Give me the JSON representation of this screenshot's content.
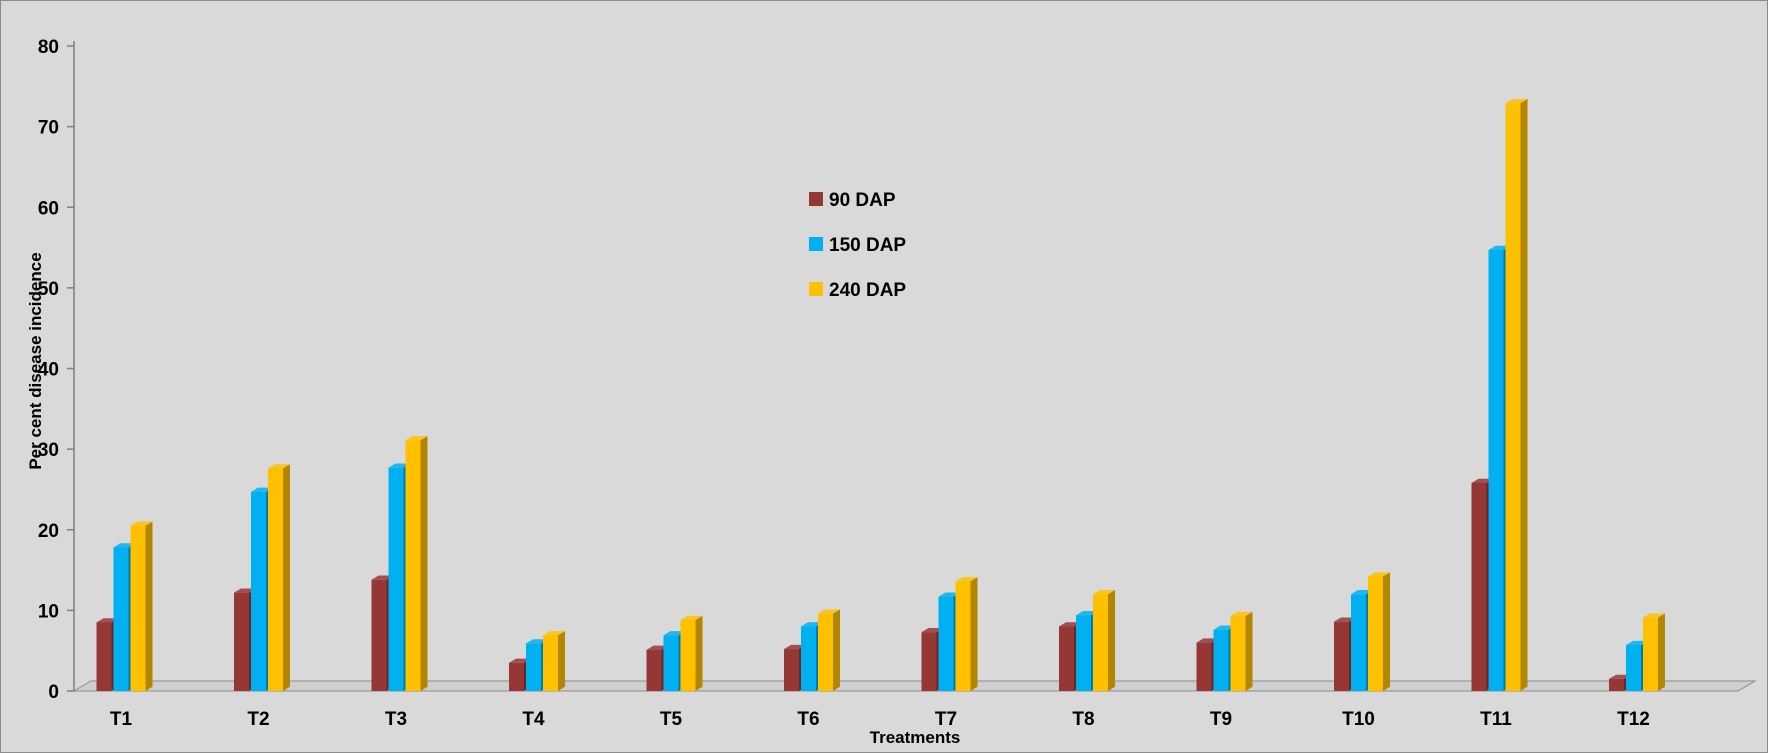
{
  "chart_data": {
    "type": "bar",
    "title": "",
    "xlabel": "Treatments",
    "ylabel": "Per cent disease incidence",
    "categories": [
      "T1",
      "T2",
      "T3",
      "T4",
      "T5",
      "T6",
      "T7",
      "T8",
      "T9",
      "T10",
      "T11",
      "T12"
    ],
    "yticks": [
      "0",
      "10",
      "20",
      "30",
      "40",
      "50",
      "60",
      "70",
      "80"
    ],
    "ylim": [
      0,
      80
    ],
    "grid": false,
    "legend_position": "center",
    "series": [
      {
        "name": "90 DAP",
        "color": "#953735",
        "values": [
          8.5,
          12.2,
          13.8,
          3.5,
          5.1,
          5.2,
          7.3,
          8.0,
          6.0,
          8.6,
          25.8,
          1.5
        ]
      },
      {
        "name": "150 DAP",
        "color": "#00b0f0",
        "values": [
          17.8,
          24.7,
          27.7,
          5.9,
          6.9,
          8.0,
          11.7,
          9.4,
          7.6,
          12.0,
          54.7,
          5.7
        ]
      },
      {
        "name": "240 DAP",
        "color": "#ffc000",
        "values": [
          20.5,
          27.6,
          31.1,
          6.9,
          8.8,
          9.6,
          13.6,
          12.0,
          9.3,
          14.2,
          72.9,
          9.1
        ]
      }
    ]
  }
}
